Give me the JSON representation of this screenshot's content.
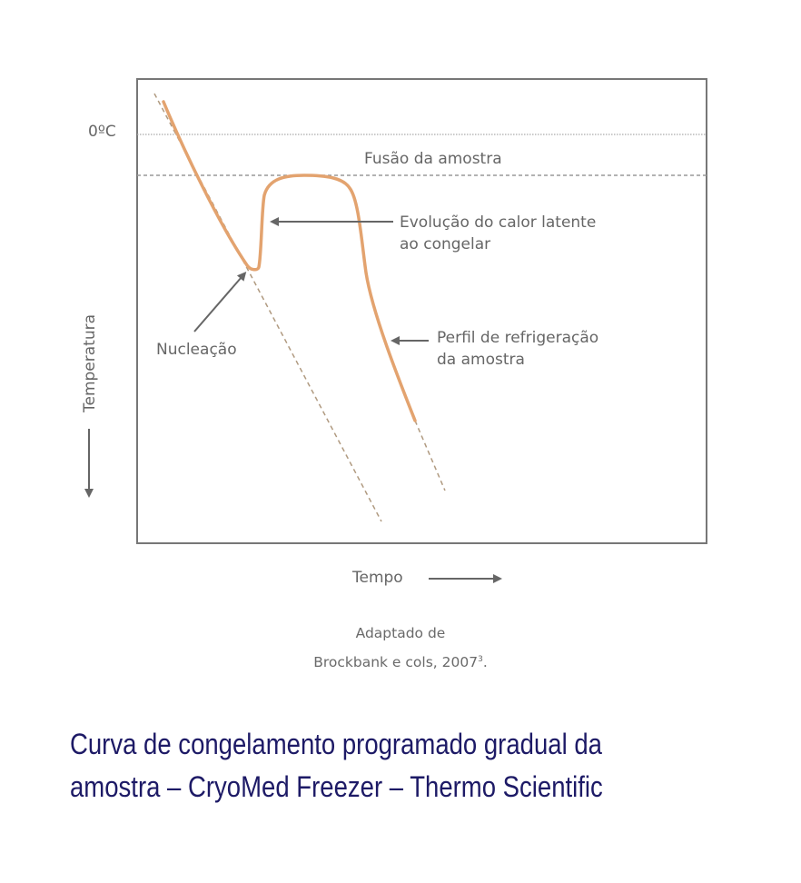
{
  "diagram": {
    "zero_label": "0ºC",
    "fusion_label": "Fusão da amostra",
    "latent_heat_label_1": "Evolução do calor latente",
    "latent_heat_label_2": "ao congelar",
    "nucleation_label": "Nucleação",
    "profile_label_1": "Perfil de refrigeração",
    "profile_label_2": "da amostra",
    "y_axis_label": "Temperatura",
    "x_axis_label": "Tempo",
    "colors": {
      "curve": "#E3A36F",
      "extrapolation": "#B09A80",
      "text": "#666666",
      "frame": "#777777"
    }
  },
  "credit": {
    "line1": "Adaptado de",
    "line2": "Brockbank e cols, 2007",
    "ref": "3",
    "end": "."
  },
  "caption": {
    "line1": "Curva de congelamento programado gradual da",
    "line2": "amostra – CryoMed Freezer – Thermo Scientific",
    "color": "#1D1A66"
  }
}
